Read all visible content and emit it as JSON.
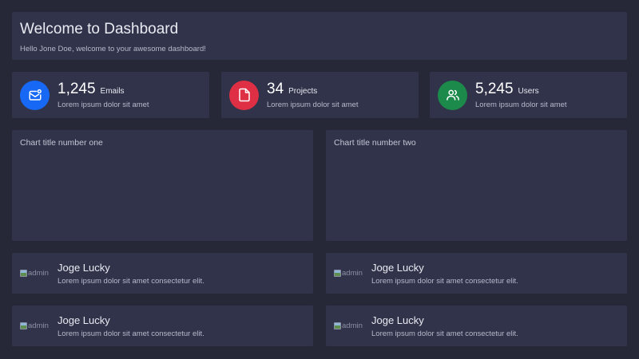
{
  "welcome": {
    "title": "Welcome to Dashboard",
    "subtitle": "Hello Jone Doe, welcome to your awesome dashboard!"
  },
  "stats": [
    {
      "value": "1,245",
      "label": "Emails",
      "sub": "Lorem ipsum dolor sit amet",
      "icon": "email-icon",
      "color": "#1769f5"
    },
    {
      "value": "34",
      "label": "Projects",
      "sub": "Lorem ipsum dolor sit amet",
      "icon": "file-icon",
      "color": "#df2f45"
    },
    {
      "value": "5,245",
      "label": "Users",
      "sub": "Lorem ipsum dolor sit amet",
      "icon": "users-icon",
      "color": "#1c8a4a"
    }
  ],
  "charts": [
    {
      "title": "Chart title number one"
    },
    {
      "title": "Chart title number two"
    }
  ],
  "people": [
    {
      "avatar_alt": "admin",
      "name": "Joge Lucky",
      "desc": "Lorem ipsum dolor sit amet consectetur elit."
    },
    {
      "avatar_alt": "admin",
      "name": "Joge Lucky",
      "desc": "Lorem ipsum dolor sit amet consectetur elit."
    },
    {
      "avatar_alt": "admin",
      "name": "Joge Lucky",
      "desc": "Lorem ipsum dolor sit amet consectetur elit."
    },
    {
      "avatar_alt": "admin",
      "name": "Joge Lucky",
      "desc": "Lorem ipsum dolor sit amet consectetur elit."
    }
  ]
}
